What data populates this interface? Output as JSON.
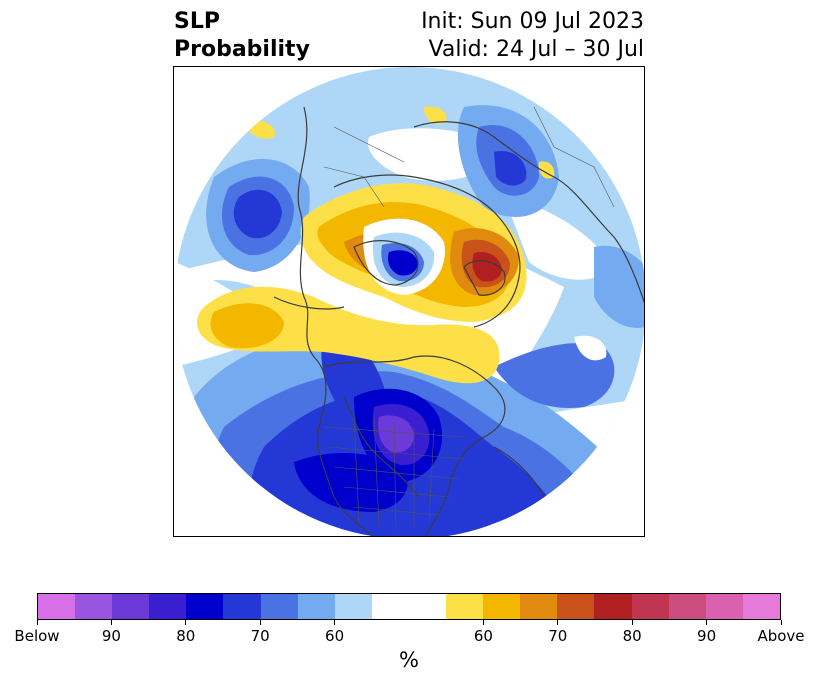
{
  "header": {
    "title_line1": "SLP",
    "title_line2": "Probability",
    "init_label": "Init: Sun 09 Jul 2023",
    "valid_label": "Valid: 24 Jul – 30 Jul"
  },
  "colorbar": {
    "colors": [
      "#d76fe8",
      "#9a55e0",
      "#6b3ad8",
      "#3a1fd0",
      "#0000cc",
      "#2438d6",
      "#4a72e2",
      "#74aaf0",
      "#aed7f7",
      "#ffffff",
      "#ffffff",
      "#fde047",
      "#f4b700",
      "#e08a10",
      "#c8521a",
      "#b02020",
      "#c03550",
      "#cc4c80",
      "#da60b0",
      "#e67ad8"
    ],
    "ticks": [
      "Below",
      "90",
      "80",
      "70",
      "60",
      "60",
      "70",
      "80",
      "90",
      "Above"
    ],
    "unit": "%"
  },
  "map": {
    "projection": "north-polar-stereographic",
    "features": [
      "coastlines",
      "country-borders",
      "us-state-borders"
    ]
  }
}
